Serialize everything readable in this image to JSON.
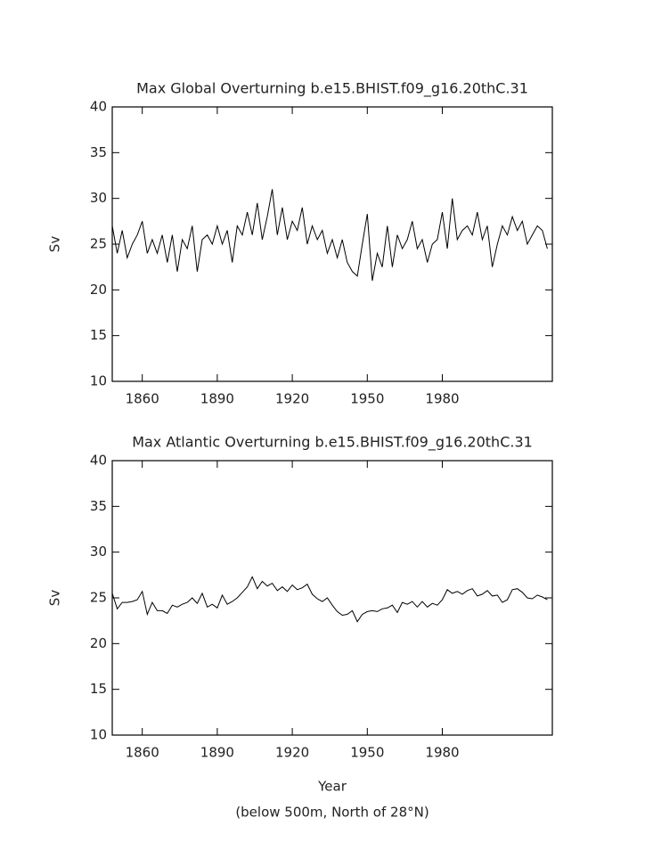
{
  "chart_data": [
    {
      "type": "line",
      "title": "Max Global Overturning b.e15.BHIST.f09_g16.20thC.31",
      "y_label": "Sv",
      "x": [
        1848,
        1850,
        1852,
        1854,
        1856,
        1858,
        1860,
        1862,
        1864,
        1866,
        1868,
        1870,
        1872,
        1874,
        1876,
        1878,
        1880,
        1882,
        1884,
        1886,
        1888,
        1890,
        1892,
        1894,
        1896,
        1898,
        1900,
        1902,
        1904,
        1906,
        1908,
        1910,
        1912,
        1914,
        1916,
        1918,
        1920,
        1922,
        1924,
        1926,
        1928,
        1930,
        1932,
        1934,
        1936,
        1938,
        1940,
        1942,
        1944,
        1946,
        1948,
        1950,
        1952,
        1954,
        1956,
        1958,
        1960,
        1962,
        1964,
        1966,
        1968,
        1970,
        1972,
        1974,
        1976,
        1978,
        1980,
        1982,
        1984,
        1986,
        1988,
        1990,
        1992,
        1994,
        1996,
        1998,
        2000,
        2002,
        2004,
        2006,
        2008,
        2010,
        2012,
        2014,
        2016,
        2018,
        2020,
        2022
      ],
      "series": [
        {
          "color": "#000000",
          "values": [
            27,
            24,
            26.5,
            23.5,
            25,
            26,
            27.5,
            24,
            25.5,
            24,
            26,
            23,
            26,
            22,
            25.5,
            24.5,
            27,
            22,
            25.5,
            26,
            25,
            27,
            25,
            26.5,
            23,
            27,
            26,
            28.5,
            26,
            29.5,
            25.5,
            28,
            31,
            26,
            29,
            25.5,
            27.5,
            26.5,
            29,
            25,
            27,
            25.5,
            26.5,
            24,
            25.5,
            23.5,
            25.5,
            23,
            22,
            21.5,
            25,
            28.3,
            21,
            24,
            22.5,
            27,
            22.5,
            26,
            24.5,
            25.5,
            27.5,
            24.5,
            25.5,
            23,
            25,
            25.5,
            28.5,
            24.5,
            30,
            25.5,
            26.5,
            27,
            26,
            28.5,
            25.5,
            27,
            22.5,
            25,
            27,
            26,
            28,
            26.5,
            27.5,
            25,
            26,
            27,
            26.5,
            24.5
          ]
        }
      ],
      "xlim": [
        1848,
        2024
      ],
      "xticks": [
        1860,
        1890,
        1920,
        1950,
        1980
      ],
      "ylim": [
        10,
        40
      ],
      "yticks": [
        10,
        15,
        20,
        25,
        30,
        35,
        40
      ]
    },
    {
      "type": "line",
      "title": "Max Atlantic Overturning b.e15.BHIST.f09_g16.20thC.31",
      "y_label": "Sv",
      "x_label": "Year",
      "note": "(below 500m, North of 28°N)",
      "x": [
        1848,
        1850,
        1852,
        1854,
        1856,
        1858,
        1860,
        1862,
        1864,
        1866,
        1868,
        1870,
        1872,
        1874,
        1876,
        1878,
        1880,
        1882,
        1884,
        1886,
        1888,
        1890,
        1892,
        1894,
        1896,
        1898,
        1900,
        1902,
        1904,
        1906,
        1908,
        1910,
        1912,
        1914,
        1916,
        1918,
        1920,
        1922,
        1924,
        1926,
        1928,
        1930,
        1932,
        1934,
        1936,
        1938,
        1940,
        1942,
        1944,
        1946,
        1948,
        1950,
        1952,
        1954,
        1956,
        1958,
        1960,
        1962,
        1964,
        1966,
        1968,
        1970,
        1972,
        1974,
        1976,
        1978,
        1980,
        1982,
        1984,
        1986,
        1988,
        1990,
        1992,
        1994,
        1996,
        1998,
        2000,
        2002,
        2004,
        2006,
        2008,
        2010,
        2012,
        2014,
        2016,
        2018,
        2020,
        2022
      ],
      "series": [
        {
          "color": "#000000",
          "values": [
            25.5,
            23.8,
            24.5,
            24.5,
            24.6,
            24.8,
            25.7,
            23.2,
            24.5,
            23.6,
            23.6,
            23.3,
            24.2,
            24,
            24.3,
            24.5,
            25,
            24.4,
            25.5,
            24,
            24.3,
            23.9,
            25.3,
            24.3,
            24.6,
            25,
            25.6,
            26.2,
            27.3,
            26,
            26.8,
            26.3,
            26.6,
            25.8,
            26.2,
            25.7,
            26.4,
            25.9,
            26.1,
            26.5,
            25.4,
            24.9,
            24.6,
            25,
            24.2,
            23.5,
            23.1,
            23.2,
            23.6,
            22.4,
            23.2,
            23.5,
            23.6,
            23.5,
            23.8,
            23.9,
            24.2,
            23.4,
            24.5,
            24.3,
            24.6,
            24,
            24.6,
            24,
            24.4,
            24.2,
            24.8,
            25.9,
            25.5,
            25.7,
            25.4,
            25.8,
            26,
            25.2,
            25.4,
            25.8,
            25.2,
            25.3,
            24.5,
            24.8,
            25.9,
            26,
            25.6,
            25,
            24.9,
            25.3,
            25.1,
            24.8
          ]
        }
      ],
      "xlim": [
        1848,
        2024
      ],
      "xticks": [
        1860,
        1890,
        1920,
        1950,
        1980
      ],
      "ylim": [
        10,
        40
      ],
      "yticks": [
        10,
        15,
        20,
        25,
        30,
        35,
        40
      ]
    }
  ]
}
